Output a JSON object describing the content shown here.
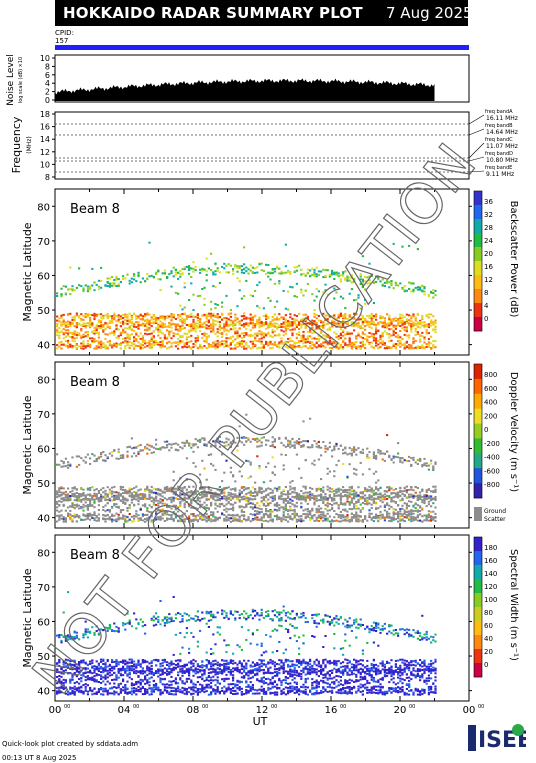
{
  "header": {
    "title": "HOKKAIDO RADAR SUMMARY PLOT",
    "date": "7 Aug 2025"
  },
  "cpid": {
    "label": "CPID:",
    "value": "157"
  },
  "noise_panel": {
    "ylabel": "Noise Level",
    "ylabel2": "log scale (dB) ×10",
    "ticks": [
      "10",
      "8",
      "6",
      "4",
      "2",
      "0"
    ]
  },
  "freq_panel": {
    "ylabel": "Frequency",
    "unit": "(MHz)",
    "ticks": [
      "18",
      "16",
      "14",
      "12",
      "10",
      "8"
    ],
    "bands": [
      {
        "name": "freq bandA",
        "value": "16.11 MHz"
      },
      {
        "name": "freq bandB",
        "value": "14.64 MHz"
      },
      {
        "name": "freq bandC",
        "value": "11.07 MHz"
      },
      {
        "name": "freq bandD",
        "value": "10.80 MHz"
      },
      {
        "name": "freq bandE",
        "value": "9.11 MHz"
      }
    ]
  },
  "panels": [
    {
      "beam": "Beam  8",
      "ylabel": "Magnetic Latitude",
      "cbar_label": "Backscatter Power (dB)",
      "cbar_ticks": [
        "36",
        "32",
        "28",
        "24",
        "20",
        "16",
        "12",
        "8",
        "4",
        "0"
      ]
    },
    {
      "beam": "Beam  8",
      "ylabel": "Magnetic Latitude",
      "cbar_label": "Doppler Velocity (m s⁻¹)",
      "cbar_ticks": [
        "800",
        "600",
        "400",
        "200",
        "0",
        "-200",
        "-400",
        "-600",
        "-800"
      ],
      "ground_label": "Ground",
      "ground_label2": "Scatter"
    },
    {
      "beam": "Beam  8",
      "ylabel": "Magnetic Latitude",
      "cbar_label": "Spectral Width (m s⁻¹)",
      "cbar_ticks": [
        "180",
        "160",
        "140",
        "120",
        "100",
        "80",
        "60",
        "40",
        "20",
        "0"
      ]
    }
  ],
  "lat_ticks": [
    "80",
    "70",
    "60",
    "50",
    "40"
  ],
  "x_ticks": [
    "00",
    "04",
    "08",
    "12",
    "16",
    "20",
    "00"
  ],
  "x_tick_sup": "00",
  "xlabel": "UT",
  "footer": {
    "line1": "Quick-look plot created by sddata.adm",
    "line2": "00:13 UT  8 Aug 2025"
  },
  "logo": {
    "text": "ISEE"
  },
  "watermark": "NOT FOR PUBLICATION",
  "colors": {
    "accent_bar": "#2020ff",
    "ground_scatter": "#8c8c8c"
  },
  "chart_data": {
    "type": "heatmap",
    "x_range_hours": [
      0,
      24
    ],
    "data_end_hour": 22,
    "lat_range": [
      37,
      85
    ],
    "series": [
      {
        "name": "Backscatter Power (dB)",
        "zlim": [
          0,
          36
        ]
      },
      {
        "name": "Doppler Velocity (m s⁻¹)",
        "zlim": [
          -800,
          800
        ]
      },
      {
        "name": "Spectral Width (m s⁻¹)",
        "zlim": [
          0,
          180
        ]
      }
    ]
  }
}
